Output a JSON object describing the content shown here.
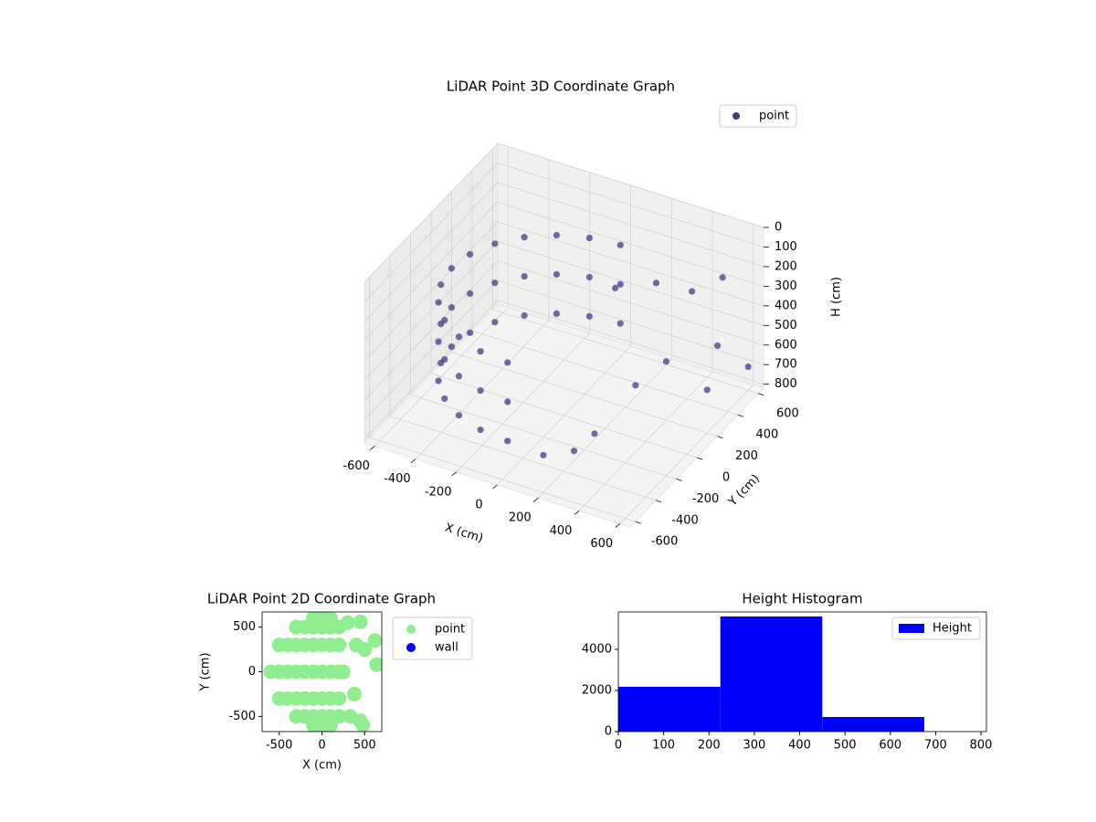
{
  "chart_data": [
    {
      "type": "scatter3d",
      "title": "LiDAR Point 3D Coordinate Graph",
      "xlabel": "X (cm)",
      "ylabel": "Y (cm)",
      "zlabel": "H (cm)",
      "xlim": [
        -650,
        650
      ],
      "ylim": [
        -650,
        650
      ],
      "zlim": [
        0,
        820
      ],
      "z_inverted": true,
      "xticks": [
        -600,
        -400,
        -200,
        0,
        200,
        400,
        600
      ],
      "yticks": [
        -600,
        -400,
        -200,
        0,
        200,
        400,
        600
      ],
      "zticks": [
        0,
        100,
        200,
        300,
        400,
        500,
        600,
        700,
        800
      ],
      "grid": true,
      "legend": "upper right",
      "series": [
        {
          "name": "point",
          "color": "#443983",
          "x": [
            0,
            -142,
            -275,
            -389,
            -476,
            -531,
            -550,
            -531,
            -476,
            -389,
            -275,
            -142,
            0,
            0,
            -142,
            -275,
            -389,
            -476,
            -531,
            -550,
            -531,
            -476,
            -389,
            -275,
            -142,
            0,
            0,
            -142,
            -275,
            -389,
            -476,
            -531,
            -550,
            -531,
            -476,
            -389,
            -275,
            -142,
            0,
            100,
            200,
            400,
            550,
            600,
            300,
            250,
            150,
            500,
            450,
            350,
            600
          ],
          "y": [
            550,
            531,
            476,
            389,
            275,
            142,
            0,
            -142,
            -275,
            -389,
            -476,
            -531,
            -550,
            550,
            531,
            476,
            389,
            275,
            142,
            0,
            -142,
            -275,
            -389,
            -476,
            -531,
            -550,
            550,
            531,
            476,
            389,
            275,
            142,
            0,
            -142,
            -275,
            -389,
            -476,
            -531,
            -550,
            300,
            500,
            450,
            400,
            200,
            -300,
            -400,
            -500,
            550,
            100,
            0,
            600
          ],
          "z": [
            250,
            250,
            250,
            250,
            250,
            250,
            250,
            250,
            250,
            250,
            250,
            250,
            250,
            450,
            450,
            450,
            450,
            450,
            450,
            450,
            450,
            450,
            450,
            450,
            450,
            450,
            650,
            650,
            650,
            650,
            650,
            650,
            650,
            650,
            650,
            650,
            650,
            650,
            650,
            300,
            350,
            300,
            500,
            600,
            650,
            700,
            700,
            250,
            450,
            550,
            700
          ]
        }
      ]
    },
    {
      "type": "scatter",
      "title": "LiDAR Point 2D Coordinate Graph",
      "xlabel": "X (cm)",
      "ylabel": "Y (cm)",
      "xlim": [
        -700,
        700
      ],
      "ylim": [
        -670,
        670
      ],
      "xticks": [
        -500,
        0,
        500
      ],
      "yticks": [
        -500,
        0,
        500
      ],
      "legend": "outside right",
      "series": [
        {
          "name": "point",
          "color": "#90ee90",
          "x": [
            -600,
            -500,
            -400,
            -300,
            -200,
            -100,
            0,
            100,
            200,
            250,
            -500,
            -400,
            -300,
            -200,
            -100,
            0,
            100,
            200,
            -500,
            -400,
            -300,
            -200,
            -100,
            0,
            100,
            200,
            -300,
            -200,
            -100,
            0,
            100,
            200,
            -300,
            -200,
            -100,
            0,
            100,
            200,
            -100,
            0,
            100,
            -100,
            0,
            100,
            300,
            450,
            400,
            500,
            620,
            640,
            380,
            330,
            450,
            480
          ],
          "y": [
            0,
            0,
            0,
            0,
            0,
            0,
            0,
            0,
            0,
            0,
            300,
            300,
            300,
            300,
            300,
            300,
            300,
            300,
            -300,
            -300,
            -300,
            -300,
            -300,
            -300,
            -300,
            -300,
            500,
            500,
            500,
            500,
            500,
            500,
            -500,
            -500,
            -500,
            -500,
            -500,
            -500,
            600,
            600,
            600,
            -600,
            -600,
            -600,
            550,
            560,
            300,
            250,
            350,
            80,
            -250,
            -500,
            -550,
            -600
          ]
        },
        {
          "name": "wall",
          "color": "#0000ff",
          "x": [],
          "y": []
        }
      ]
    },
    {
      "type": "histogram",
      "title": "Height Histogram",
      "xlim": [
        0,
        812
      ],
      "ylim": [
        0,
        5820
      ],
      "xticks": [
        0,
        100,
        200,
        300,
        400,
        500,
        600,
        700,
        800
      ],
      "yticks": [
        0,
        2000,
        4000
      ],
      "legend": "upper right",
      "series": [
        {
          "name": "Height",
          "color": "#0000ff",
          "bins": [
            0,
            225,
            450,
            675
          ],
          "counts": [
            2180,
            5600,
            711
          ]
        }
      ]
    }
  ]
}
